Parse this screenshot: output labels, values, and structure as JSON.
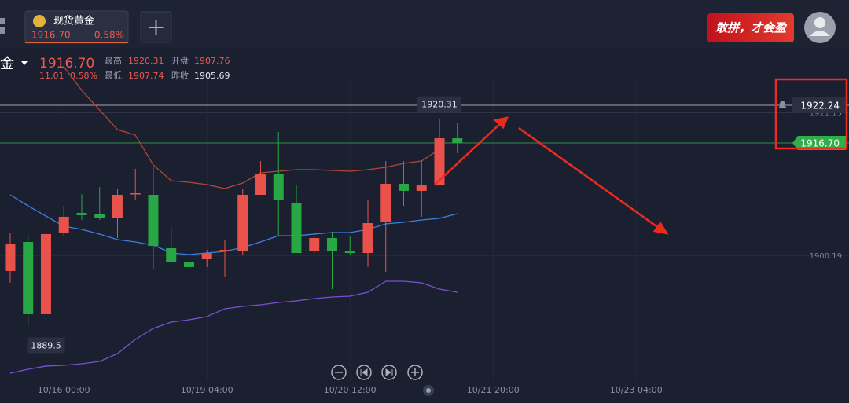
{
  "tab": {
    "name": "现货黄金",
    "price": "1916.70",
    "change_pct": "0.58%"
  },
  "banner": {
    "text": "敢拼，才会盈"
  },
  "quote": {
    "symbol": "金",
    "price": "1916.70",
    "change": "11.01",
    "change_pct": "0.58%",
    "high_label": "最高",
    "high": "1920.31",
    "open_label": "开盘",
    "open": "1907.76",
    "low_label": "最低",
    "low": "1907.74",
    "prev_close_label": "昨收",
    "prev_close": "1905.69"
  },
  "chart_data": {
    "type": "candlestick",
    "open": [
      1897.88,
      1902.15,
      1891.53,
      1903.42,
      1906.42,
      1906.31,
      1905.73,
      1909.2,
      1909.08,
      1901.23,
      1899.26,
      1899.61,
      1900.76,
      1900.76,
      1909.08,
      1912.08,
      1907.92,
      1900.76,
      1902.73,
      1900.76,
      1900.53,
      1905.15,
      1910.7,
      1909.66,
      1910.46,
      1917.39
    ],
    "high": [
      1903.42,
      1903.07,
      1906.54,
      1907.46,
      1909.16,
      1910.23,
      1910.0,
      1912.89,
      1913.12,
      1904.23,
      1900.19,
      1900.99,
      1902.5,
      1910.0,
      1914.04,
      1918.32,
      1910.58,
      1903.07,
      1903.65,
      1903.07,
      1908.27,
      1914.04,
      1914.04,
      1914.04,
      1920.31,
      1919.7
    ],
    "low": [
      1896.15,
      1889.79,
      1889.5,
      1903.07,
      1905.38,
      1905.38,
      1902.73,
      1908.27,
      1898.11,
      1899.04,
      1898.22,
      1898.46,
      1897.07,
      1900.19,
      1909.08,
      1903.07,
      1900.53,
      1900.53,
      1895.22,
      1900.19,
      1898.46,
      1897.76,
      1907.46,
      1905.85,
      1910.46,
      1915.2
    ],
    "close": [
      1901.92,
      1891.53,
      1903.31,
      1905.85,
      1906.08,
      1905.73,
      1909.08,
      1909.31,
      1901.57,
      1899.15,
      1898.46,
      1900.53,
      1900.99,
      1909.08,
      1912.08,
      1908.27,
      1900.53,
      1902.73,
      1900.76,
      1900.53,
      1904.92,
      1910.7,
      1909.66,
      1910.46,
      1917.39,
      1916.7
    ],
    "up_color": "#e8524a",
    "down_color": "#27a844",
    "bands": [
      {
        "color": "#b0463c",
        "values": [
          null,
          null,
          null,
          1927.9,
          1924.44,
          1921.55,
          1918.66,
          1917.85,
          1913.47,
          1911.16,
          1910.93,
          1910.58,
          1910.0,
          1910.81,
          1912.31,
          1912.54,
          1912.77,
          1912.77,
          1912.66,
          1912.54,
          1912.77,
          1913.12,
          1913.7,
          1914.04,
          1915.78,
          null
        ]
      },
      {
        "color": "#3f7ee0",
        "values": [
          1909.08,
          1907.46,
          1905.96,
          1904.46,
          1904.0,
          1903.31,
          1902.5,
          1902.15,
          1901.69,
          1900.53,
          1900.3,
          1900.53,
          1900.76,
          1901.34,
          1902.15,
          1903.07,
          1903.07,
          1903.31,
          1903.54,
          1903.54,
          1904.0,
          1904.81,
          1905.04,
          1905.38,
          1905.61,
          1906.31
        ]
      },
      {
        "color": "#7a4fd6",
        "values": [
          1882.87,
          1883.44,
          1883.91,
          1884.02,
          1884.25,
          1884.6,
          1885.75,
          1887.83,
          1889.45,
          1890.37,
          1890.72,
          1891.18,
          1892.34,
          1892.68,
          1892.91,
          1893.26,
          1893.49,
          1893.84,
          1894.07,
          1894.18,
          1894.76,
          1896.38,
          1896.38,
          1896.15,
          1895.22,
          1894.76
        ]
      }
    ],
    "ylim": [
      1881.71,
      1930.79
    ],
    "yticks": [
      1921.15,
      1900.19
    ],
    "xlim": [
      -0.57,
      46.9
    ],
    "xticks": [
      {
        "value": 3,
        "label": "10/16 00:00"
      },
      {
        "value": 11,
        "label": "10/19 04:00"
      },
      {
        "value": 19,
        "label": "10/20 12:00"
      },
      {
        "value": 27,
        "label": "10/21 20:00"
      },
      {
        "value": 35,
        "label": "10/23 04:00"
      }
    ],
    "price_lines": [
      {
        "value": 1922.24,
        "label": "1922.24",
        "color": "#c9ccd4"
      },
      {
        "value": 1916.7,
        "label": "1916.70",
        "color": "#2fae4a"
      }
    ],
    "max_label": 1920.31,
    "min_label": 1889.5,
    "grid": true
  }
}
